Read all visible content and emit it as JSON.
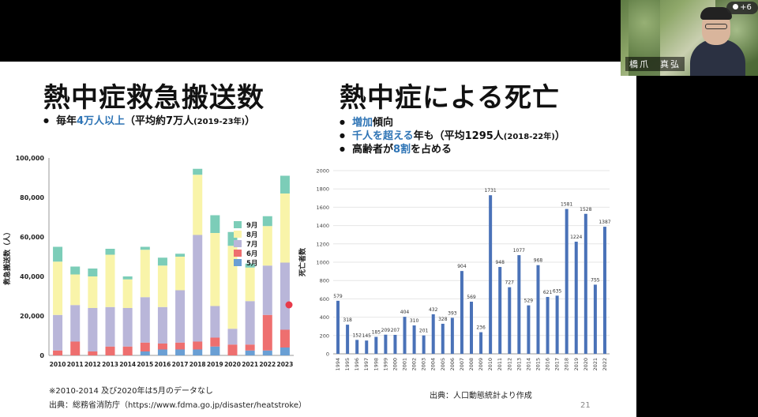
{
  "participants": {
    "count": "+6"
  },
  "camera": {
    "name": "橋爪　真弘"
  },
  "slide": {
    "left": {
      "title": "熱中症救急搬送数",
      "bullet": {
        "pre": "毎年",
        "hl": "4万人以上",
        "post": "（平均約7万人",
        "small": "(2019-23年)",
        "tail": "）"
      },
      "note": "※2010-2014 及び2020年は5月のデータなし",
      "source": "出典：総務省消防庁（https://www.fdma.go.jp/disaster/heatstroke）"
    },
    "right": {
      "title": "熱中症による死亡",
      "b1": {
        "hl": "増加",
        "post": "傾向"
      },
      "b2": {
        "hl": "千人を超える",
        "mid": "年も（平均1295人",
        "small": "(2018-22年)",
        "tail": "）"
      },
      "b3": {
        "pre": "高齢者が",
        "hl": "8割",
        "post": "を占める"
      },
      "source": "出典：人口動態統計より作成"
    },
    "page_number": "21"
  },
  "chart_data": [
    {
      "type": "bar",
      "stacked": true,
      "ylabel": "救急搬送数（人）",
      "ylim": [
        0,
        100000
      ],
      "yticks": [
        "0",
        "20,000",
        "40,000",
        "60,000",
        "80,000",
        "100,000"
      ],
      "categories": [
        "2010",
        "2011",
        "2012",
        "2013",
        "2014",
        "2015",
        "2016",
        "2017",
        "2018",
        "2019",
        "2020",
        "2021",
        "2022",
        "2023"
      ],
      "series": [
        {
          "name": "5月",
          "color": "#6a9fd4",
          "values": [
            0,
            0,
            0,
            0,
            0,
            2000,
            3000,
            3000,
            3000,
            4500,
            0,
            2500,
            2500,
            4000
          ]
        },
        {
          "name": "6月",
          "color": "#ee6f6f",
          "values": [
            2500,
            7000,
            2000,
            4500,
            4500,
            4500,
            3000,
            3500,
            4000,
            4500,
            5500,
            3000,
            18000,
            9000
          ]
        },
        {
          "name": "7月",
          "color": "#b9b6d9",
          "values": [
            18000,
            18500,
            22000,
            20000,
            19500,
            23000,
            18500,
            26500,
            54000,
            16000,
            8000,
            22000,
            25000,
            34000
          ]
        },
        {
          "name": "8月",
          "color": "#f9f4a9",
          "values": [
            27000,
            15500,
            16000,
            26500,
            14500,
            24000,
            21000,
            17000,
            30500,
            37000,
            42000,
            17000,
            20000,
            35000
          ]
        },
        {
          "name": "9月",
          "color": "#7ccdb8",
          "values": [
            7500,
            4000,
            4000,
            3000,
            1500,
            1500,
            4000,
            1500,
            3000,
            9000,
            7000,
            2000,
            5000,
            9000
          ]
        }
      ]
    },
    {
      "type": "bar",
      "ylabel": "死亡者数",
      "ylim": [
        0,
        2000
      ],
      "yticks": [
        "0",
        "200",
        "400",
        "600",
        "800",
        "1000",
        "1200",
        "1400",
        "1600",
        "1800",
        "2000"
      ],
      "categories": [
        "1994",
        "1995",
        "1996",
        "1997",
        "1998",
        "1999",
        "2000",
        "2001",
        "2002",
        "2003",
        "2004",
        "2005",
        "2006",
        "2007",
        "2008",
        "2009",
        "2010",
        "2011",
        "2012",
        "2013",
        "2014",
        "2015",
        "2016",
        "2017",
        "2018",
        "2019",
        "2020",
        "2021",
        "2022"
      ],
      "values": [
        579,
        318,
        152,
        145,
        185,
        209,
        207,
        404,
        310,
        201,
        432,
        328,
        393,
        904,
        569,
        236,
        1731,
        948,
        727,
        1077,
        529,
        968,
        621,
        635,
        1581,
        1224,
        1528,
        755,
        1387
      ],
      "data_labels": [
        "579",
        "318",
        "152",
        "145",
        "185",
        "209",
        "207",
        "404",
        "310",
        "201",
        "432",
        "328",
        "393",
        "904",
        "569",
        "236",
        "1731",
        "948",
        "727",
        "1077",
        "529",
        "968",
        "621",
        "635",
        "1581",
        "1224",
        "1528",
        "755",
        "1387"
      ],
      "color": "#4a72b8"
    }
  ]
}
